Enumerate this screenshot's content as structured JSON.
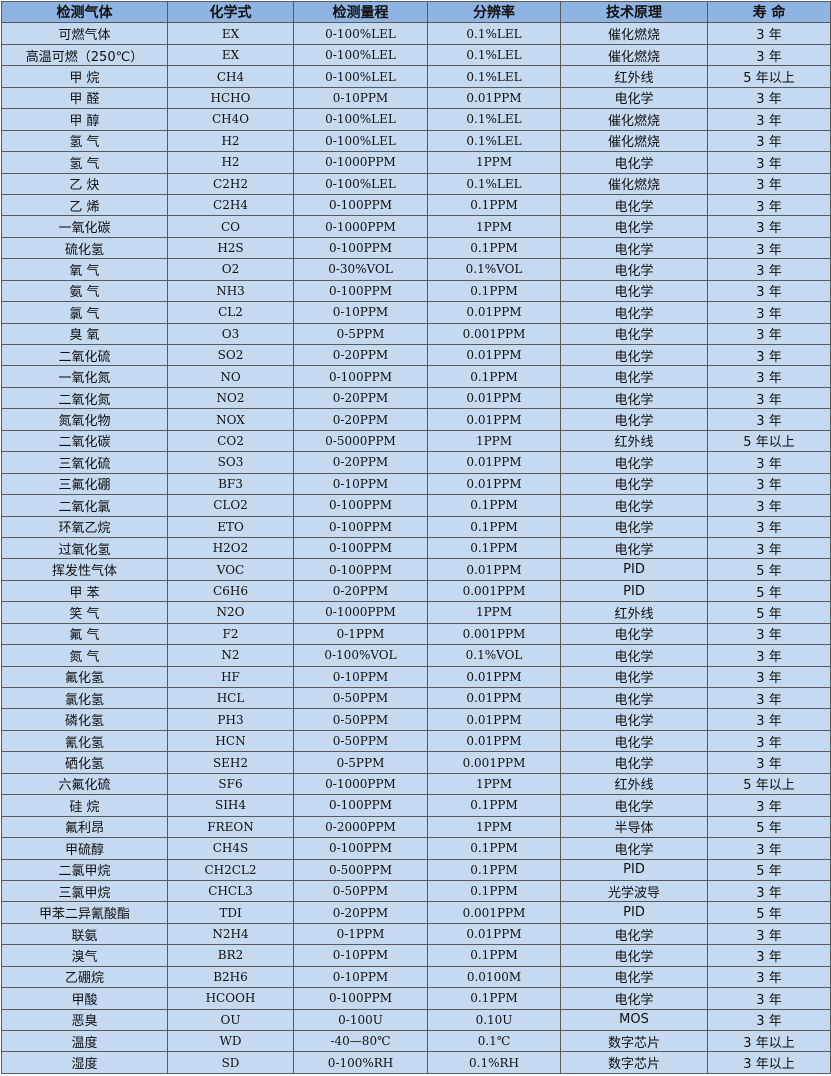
{
  "colors": {
    "header_bg": "#8db4e2",
    "body_bg": "#c5d9f1",
    "border": "#5a5a5a"
  },
  "headers": [
    "检测气体",
    "化学式",
    "检测量程",
    "分辨率",
    "技术原理",
    "寿 命"
  ],
  "rows": [
    [
      "可燃气体",
      "EX",
      "0-100%LEL",
      "0.1%LEL",
      "催化燃烧",
      "3 年"
    ],
    [
      "高温可燃（250℃）",
      "EX",
      "0-100%LEL",
      "0.1%LEL",
      "催化燃烧",
      "3 年"
    ],
    [
      "甲 烷",
      "CH4",
      "0-100%LEL",
      "0.1%LEL",
      "红外线",
      "5 年以上"
    ],
    [
      "甲 醛",
      "HCHO",
      "0-10PPM",
      "0.01PPM",
      "电化学",
      "3 年"
    ],
    [
      "甲 醇",
      "CH4O",
      "0-100%LEL",
      "0.1%LEL",
      "催化燃烧",
      "3 年"
    ],
    [
      "氢 气",
      "H2",
      "0-100%LEL",
      "0.1%LEL",
      "催化燃烧",
      "3 年"
    ],
    [
      "氢 气",
      "H2",
      "0-1000PPM",
      "1PPM",
      "电化学",
      "3 年"
    ],
    [
      "乙 炔",
      "C2H2",
      "0-100%LEL",
      "0.1%LEL",
      "催化燃烧",
      "3 年"
    ],
    [
      "乙 烯",
      "C2H4",
      "0-100PPM",
      "0.1PPM",
      "电化学",
      "3 年"
    ],
    [
      "一氧化碳",
      "CO",
      "0-1000PPM",
      "1PPM",
      "电化学",
      "3 年"
    ],
    [
      "硫化氢",
      "H2S",
      "0-100PPM",
      "0.1PPM",
      "电化学",
      "3 年"
    ],
    [
      "氧 气",
      "O2",
      "0-30%VOL",
      "0.1%VOL",
      "电化学",
      "3 年"
    ],
    [
      "氨 气",
      "NH3",
      "0-100PPM",
      "0.1PPM",
      "电化学",
      "3 年"
    ],
    [
      "氯 气",
      "CL2",
      "0-10PPM",
      "0.01PPM",
      "电化学",
      "3 年"
    ],
    [
      "臭 氧",
      "O3",
      "0-5PPM",
      "0.001PPM",
      "电化学",
      "3 年"
    ],
    [
      "二氧化硫",
      "SO2",
      "0-20PPM",
      "0.01PPM",
      "电化学",
      "3 年"
    ],
    [
      "一氧化氮",
      "NO",
      "0-100PPM",
      "0.1PPM",
      "电化学",
      "3 年"
    ],
    [
      "二氧化氮",
      "NO2",
      "0-20PPM",
      "0.01PPM",
      "电化学",
      "3 年"
    ],
    [
      "氮氧化物",
      "NOX",
      "0-20PPM",
      "0.01PPM",
      "电化学",
      "3 年"
    ],
    [
      "二氧化碳",
      "CO2",
      "0-5000PPM",
      "1PPM",
      "红外线",
      "5 年以上"
    ],
    [
      "三氧化硫",
      "SO3",
      "0-20PPM",
      "0.01PPM",
      "电化学",
      "3 年"
    ],
    [
      "三氟化硼",
      "BF3",
      "0-10PPM",
      "0.01PPM",
      "电化学",
      "3 年"
    ],
    [
      "二氧化氯",
      "CLO2",
      "0-100PPM",
      "0.1PPM",
      "电化学",
      "3 年"
    ],
    [
      "环氧乙烷",
      "ETO",
      "0-100PPM",
      "0.1PPM",
      "电化学",
      "3 年"
    ],
    [
      "过氧化氢",
      "H2O2",
      "0-100PPM",
      "0.1PPM",
      "电化学",
      "3 年"
    ],
    [
      "挥发性气体",
      "VOC",
      "0-100PPM",
      "0.01PPM",
      "PID",
      "5 年"
    ],
    [
      "甲 苯",
      "C6H6",
      "0-20PPM",
      "0.001PPM",
      "PID",
      "5 年"
    ],
    [
      "笑 气",
      "N2O",
      "0-1000PPM",
      "1PPM",
      "红外线",
      "5 年"
    ],
    [
      "氟 气",
      "F2",
      "0-1PPM",
      "0.001PPM",
      "电化学",
      "3 年"
    ],
    [
      "氮 气",
      "N2",
      "0-100%VOL",
      "0.1%VOL",
      "电化学",
      "3 年"
    ],
    [
      "氟化氢",
      "HF",
      "0-10PPM",
      "0.01PPM",
      "电化学",
      "3 年"
    ],
    [
      "氯化氢",
      "HCL",
      "0-50PPM",
      "0.01PPM",
      "电化学",
      "3 年"
    ],
    [
      "磷化氢",
      "PH3",
      "0-50PPM",
      "0.01PPM",
      "电化学",
      "3 年"
    ],
    [
      "氰化氢",
      "HCN",
      "0-50PPM",
      "0.01PPM",
      "电化学",
      "3 年"
    ],
    [
      "硒化氢",
      "SEH2",
      "0-5PPM",
      "0.001PPM",
      "电化学",
      "3 年"
    ],
    [
      "六氟化硫",
      "SF6",
      "0-1000PPM",
      "1PPM",
      "红外线",
      "5 年以上"
    ],
    [
      "硅 烷",
      "SIH4",
      "0-100PPM",
      "0.1PPM",
      "电化学",
      "3 年"
    ],
    [
      "氟利昂",
      "FREON",
      "0-2000PPM",
      "1PPM",
      "半导体",
      "5 年"
    ],
    [
      "甲硫醇",
      "CH4S",
      "0-100PPM",
      "0.1PPM",
      "电化学",
      "3 年"
    ],
    [
      "二氯甲烷",
      "CH2CL2",
      "0-500PPM",
      "0.1PPM",
      "PID",
      "5 年"
    ],
    [
      "三氯甲烷",
      "CHCL3",
      "0-50PPM",
      "0.1PPM",
      "光学波导",
      "3 年"
    ],
    [
      "甲苯二异氰酸酯",
      "TDI",
      "0-20PPM",
      "0.001PPM",
      "PID",
      "5 年"
    ],
    [
      "联氨",
      "N2H4",
      "0-1PPM",
      "0.01PPM",
      "电化学",
      "3 年"
    ],
    [
      "溴气",
      "BR2",
      "0-10PPM",
      "0.1PPM",
      "电化学",
      "3 年"
    ],
    [
      "乙硼烷",
      "B2H6",
      "0-10PPM",
      "0.0100M",
      "电化学",
      "3 年"
    ],
    [
      "甲酸",
      "HCOOH",
      "0-100PPM",
      "0.1PPM",
      "电化学",
      "3 年"
    ],
    [
      "恶臭",
      "OU",
      "0-100U",
      "0.10U",
      "MOS",
      "3 年"
    ],
    [
      "温度",
      "WD",
      "-40—80℃",
      "0.1℃",
      "数字芯片",
      "3 年以上"
    ],
    [
      "湿度",
      "SD",
      "0-100%RH",
      "0.1%RH",
      "数字芯片",
      "3 年以上"
    ]
  ]
}
